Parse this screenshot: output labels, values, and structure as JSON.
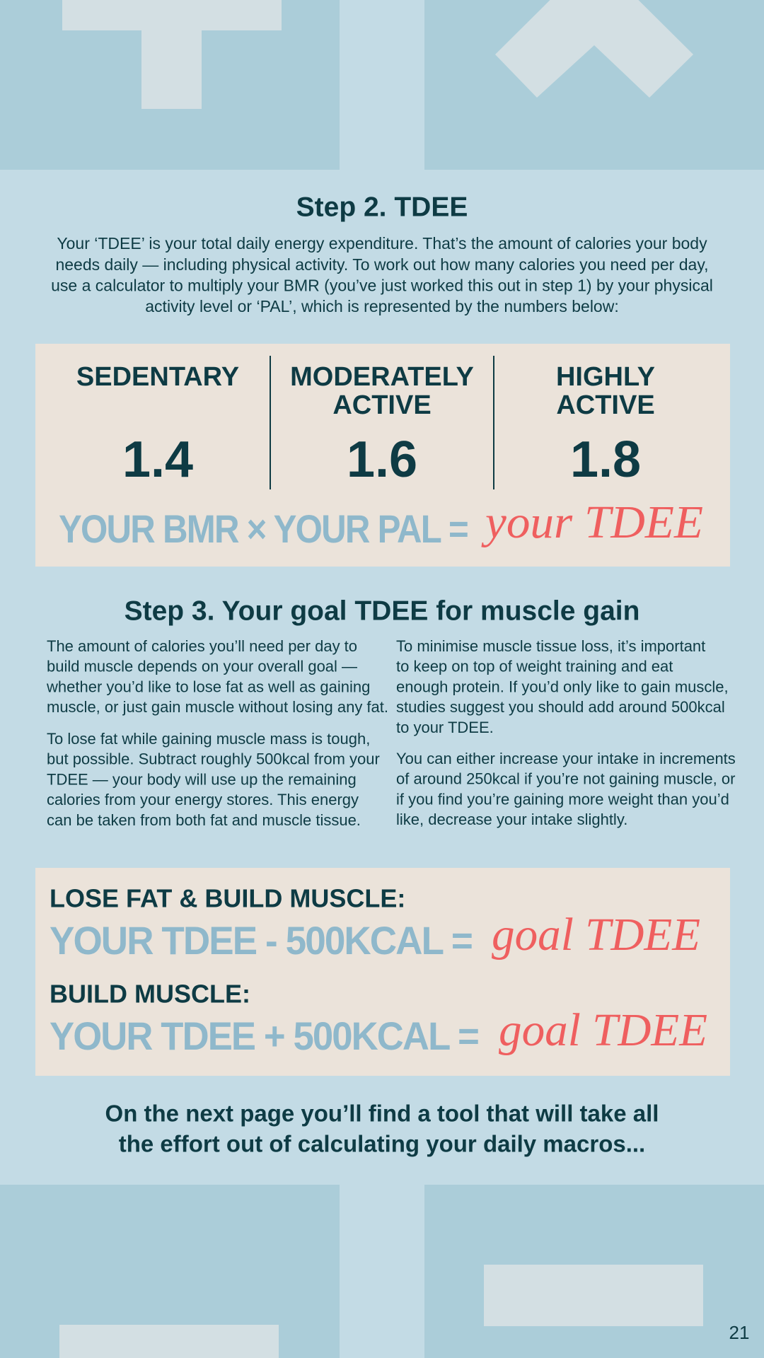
{
  "step2": {
    "title": "Step 2. TDEE",
    "lines": [
      "Your ‘TDEE’ is your total daily energy expenditure. That’s the amount of calories your body",
      "needs daily — including physical activity. To work out how many calories you need per day,",
      "use a calculator to multiply your BMR (you’ve just worked this out in step 1) by your physical",
      "activity level or ‘PAL’, which is represented by the numbers below:"
    ]
  },
  "pal": {
    "levels": [
      {
        "label": [
          "SEDENTARY"
        ],
        "value": "1.4"
      },
      {
        "label": [
          "MODERATELY",
          "ACTIVE"
        ],
        "value": "1.6"
      },
      {
        "label": [
          "HIGHLY",
          "ACTIVE"
        ],
        "value": "1.8"
      }
    ],
    "formula": "YOUR BMR × YOUR PAL =",
    "result": "your TDEE"
  },
  "step3": {
    "title": "Step 3. Your goal TDEE for muscle gain",
    "left": [
      [
        "The amount of calories you’ll need per day to",
        "build muscle depends on your overall goal —",
        "whether you’d like to lose fat as well as gaining",
        "muscle, or just gain muscle without losing any fat."
      ],
      [
        "To lose fat while gaining muscle mass is tough,",
        "but possible. Subtract roughly 500kcal from your",
        "TDEE — your body will use up the remaining",
        "calories from your energy stores. This energy",
        "can be taken from both fat and muscle tissue."
      ]
    ],
    "right": [
      [
        "To minimise muscle tissue loss, it’s important",
        "to keep on top of weight training and eat",
        "enough protein. If you’d only like to gain muscle,",
        "studies suggest you should add around 500kcal",
        "to your TDEE."
      ],
      [
        "You can either increase your intake in increments",
        "of around 250kcal if you’re not gaining muscle, or",
        "if you find you’re gaining more weight than you’d",
        "like, decrease your intake slightly."
      ]
    ]
  },
  "goals": [
    {
      "heading": "LOSE FAT & BUILD MUSCLE:",
      "formula": "YOUR TDEE - 500KCAL =",
      "result": "goal TDEE"
    },
    {
      "heading": "BUILD MUSCLE:",
      "formula": "YOUR TDEE + 500KCAL =",
      "result": "goal TDEE"
    }
  ],
  "closing": [
    "On the next page you’ll find a tool that will take all",
    "the effort out of calculating your daily macros..."
  ],
  "page_number": "21"
}
